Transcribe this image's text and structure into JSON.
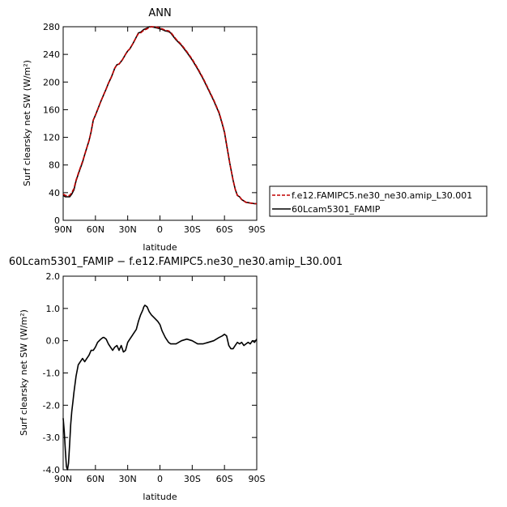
{
  "chart_data": [
    {
      "type": "line",
      "title": "ANN",
      "xlabel": "latitude",
      "ylabel": "Surf clearsky net SW (W/m²)",
      "xticks": [
        "90N",
        "60N",
        "30N",
        "0",
        "30S",
        "60S",
        "90S"
      ],
      "xlim": [
        90,
        -90
      ],
      "ylim": [
        0,
        280
      ],
      "yticks": [
        "0",
        "40",
        "80",
        "120",
        "160",
        "200",
        "240",
        "280"
      ],
      "legend": "right",
      "series": [
        {
          "name": "f.e12.FAMIPC5.ne30_ne30.amip_L30.001",
          "color": "#c00000",
          "dash": true,
          "lat": [
            90,
            88,
            86,
            84,
            82,
            80,
            78,
            75,
            72,
            70,
            68,
            66,
            64,
            62,
            60,
            58,
            55,
            52,
            50,
            48,
            45,
            42,
            40,
            38,
            35,
            32,
            30,
            28,
            25,
            22,
            20,
            18,
            15,
            12,
            10,
            8,
            5,
            2,
            0,
            -2,
            -5,
            -8,
            -10,
            -12,
            -15,
            -20,
            -25,
            -30,
            -35,
            -40,
            -45,
            -50,
            -55,
            -58,
            -60,
            -62,
            -65,
            -68,
            -70,
            -72,
            -74,
            -76,
            -78,
            -80,
            -82,
            -84,
            -86,
            -88,
            -90
          ],
          "values": [
            38,
            36,
            35.5,
            36,
            40,
            46,
            58,
            72,
            85,
            95,
            105,
            115,
            128,
            145,
            152,
            160,
            172,
            183,
            190,
            198,
            208,
            220,
            225,
            226,
            232,
            240,
            245,
            248,
            256,
            265,
            270,
            271,
            275,
            277,
            279,
            280,
            280,
            279,
            278,
            277,
            275,
            274,
            272,
            268,
            262,
            254,
            244,
            233,
            220,
            206,
            190,
            174,
            156,
            140,
            128,
            110,
            82,
            58,
            45,
            36,
            34,
            30,
            28,
            26,
            25.5,
            25,
            24.5,
            24,
            24
          ]
        },
        {
          "name": "60Lcam5301_FAMIP",
          "color": "#000000",
          "dash": false,
          "lat": [
            90,
            88,
            86,
            84,
            82,
            80,
            78,
            75,
            72,
            70,
            68,
            66,
            64,
            62,
            60,
            58,
            55,
            52,
            50,
            48,
            45,
            42,
            40,
            38,
            35,
            32,
            30,
            28,
            25,
            22,
            20,
            18,
            15,
            12,
            10,
            8,
            5,
            2,
            0,
            -2,
            -5,
            -8,
            -10,
            -12,
            -15,
            -20,
            -25,
            -30,
            -35,
            -40,
            -45,
            -50,
            -55,
            -58,
            -60,
            -62,
            -65,
            -68,
            -70,
            -72,
            -74,
            -76,
            -78,
            -80,
            -82,
            -84,
            -86,
            -88,
            -90
          ],
          "values": [
            36,
            34,
            34,
            34,
            38,
            44,
            57,
            71,
            84,
            95,
            105,
            115,
            128,
            145,
            152,
            160,
            172,
            183,
            190,
            198,
            208,
            220,
            225,
            226,
            232,
            240,
            245,
            248,
            256,
            265,
            271,
            272,
            276,
            278,
            280,
            280,
            279,
            278,
            277,
            276,
            274,
            273,
            271,
            267,
            261,
            253,
            243,
            232,
            219,
            205,
            189,
            173,
            155,
            139,
            127,
            109,
            82,
            58,
            45,
            36,
            34,
            30,
            28,
            26,
            25.5,
            25,
            24.5,
            24,
            24
          ]
        }
      ]
    },
    {
      "type": "line",
      "title": "60Lcam5301_FAMIP − f.e12.FAMIPC5.ne30_ne30.amip_L30.001",
      "xlabel": "latitude",
      "ylabel": "Surf clearsky net SW (W/m²)",
      "xticks": [
        "90N",
        "60N",
        "30N",
        "0",
        "30S",
        "60S",
        "90S"
      ],
      "xlim": [
        90,
        -90
      ],
      "ylim": [
        -4.0,
        2.0
      ],
      "yticks": [
        "-4.0",
        "-3.0",
        "-2.0",
        "-1.0",
        "0.0",
        "1.0",
        "2.0"
      ],
      "series": [
        {
          "color": "#000000",
          "lat": [
            90,
            89,
            88,
            87,
            86,
            85,
            84,
            83,
            82,
            81,
            80,
            78,
            76,
            74,
            72,
            70,
            68,
            66,
            64,
            62,
            60,
            58,
            55,
            53,
            52,
            50,
            48,
            46,
            44,
            42,
            40,
            38,
            36,
            34,
            32,
            30,
            28,
            26,
            25,
            22,
            20,
            18,
            16,
            15,
            14,
            12,
            10,
            8,
            5,
            2,
            0,
            -2,
            -5,
            -8,
            -10,
            -15,
            -20,
            -25,
            -30,
            -35,
            -40,
            -45,
            -50,
            -55,
            -58,
            -60,
            -62,
            -64,
            -66,
            -68,
            -70,
            -72,
            -74,
            -76,
            -78,
            -80,
            -82,
            -84,
            -86,
            -88,
            -90
          ],
          "values": [
            -2.4,
            -2.8,
            -3.4,
            -3.9,
            -4.0,
            -3.8,
            -3.2,
            -2.6,
            -2.2,
            -1.9,
            -1.6,
            -1.1,
            -0.75,
            -0.65,
            -0.55,
            -0.65,
            -0.55,
            -0.45,
            -0.3,
            -0.3,
            -0.2,
            -0.05,
            0.05,
            0.1,
            0.1,
            0.05,
            -0.1,
            -0.2,
            -0.3,
            -0.2,
            -0.15,
            -0.3,
            -0.15,
            -0.35,
            -0.3,
            -0.05,
            0.05,
            0.15,
            0.2,
            0.35,
            0.6,
            0.8,
            0.95,
            1.05,
            1.1,
            1.05,
            0.9,
            0.8,
            0.7,
            0.6,
            0.5,
            0.3,
            0.1,
            -0.05,
            -0.1,
            -0.1,
            0.0,
            0.05,
            0.0,
            -0.1,
            -0.1,
            -0.05,
            0.0,
            0.1,
            0.15,
            0.2,
            0.15,
            -0.15,
            -0.25,
            -0.25,
            -0.15,
            -0.05,
            -0.1,
            -0.05,
            -0.15,
            -0.1,
            -0.05,
            -0.1,
            0.0,
            -0.05,
            0.05
          ]
        }
      ]
    }
  ]
}
